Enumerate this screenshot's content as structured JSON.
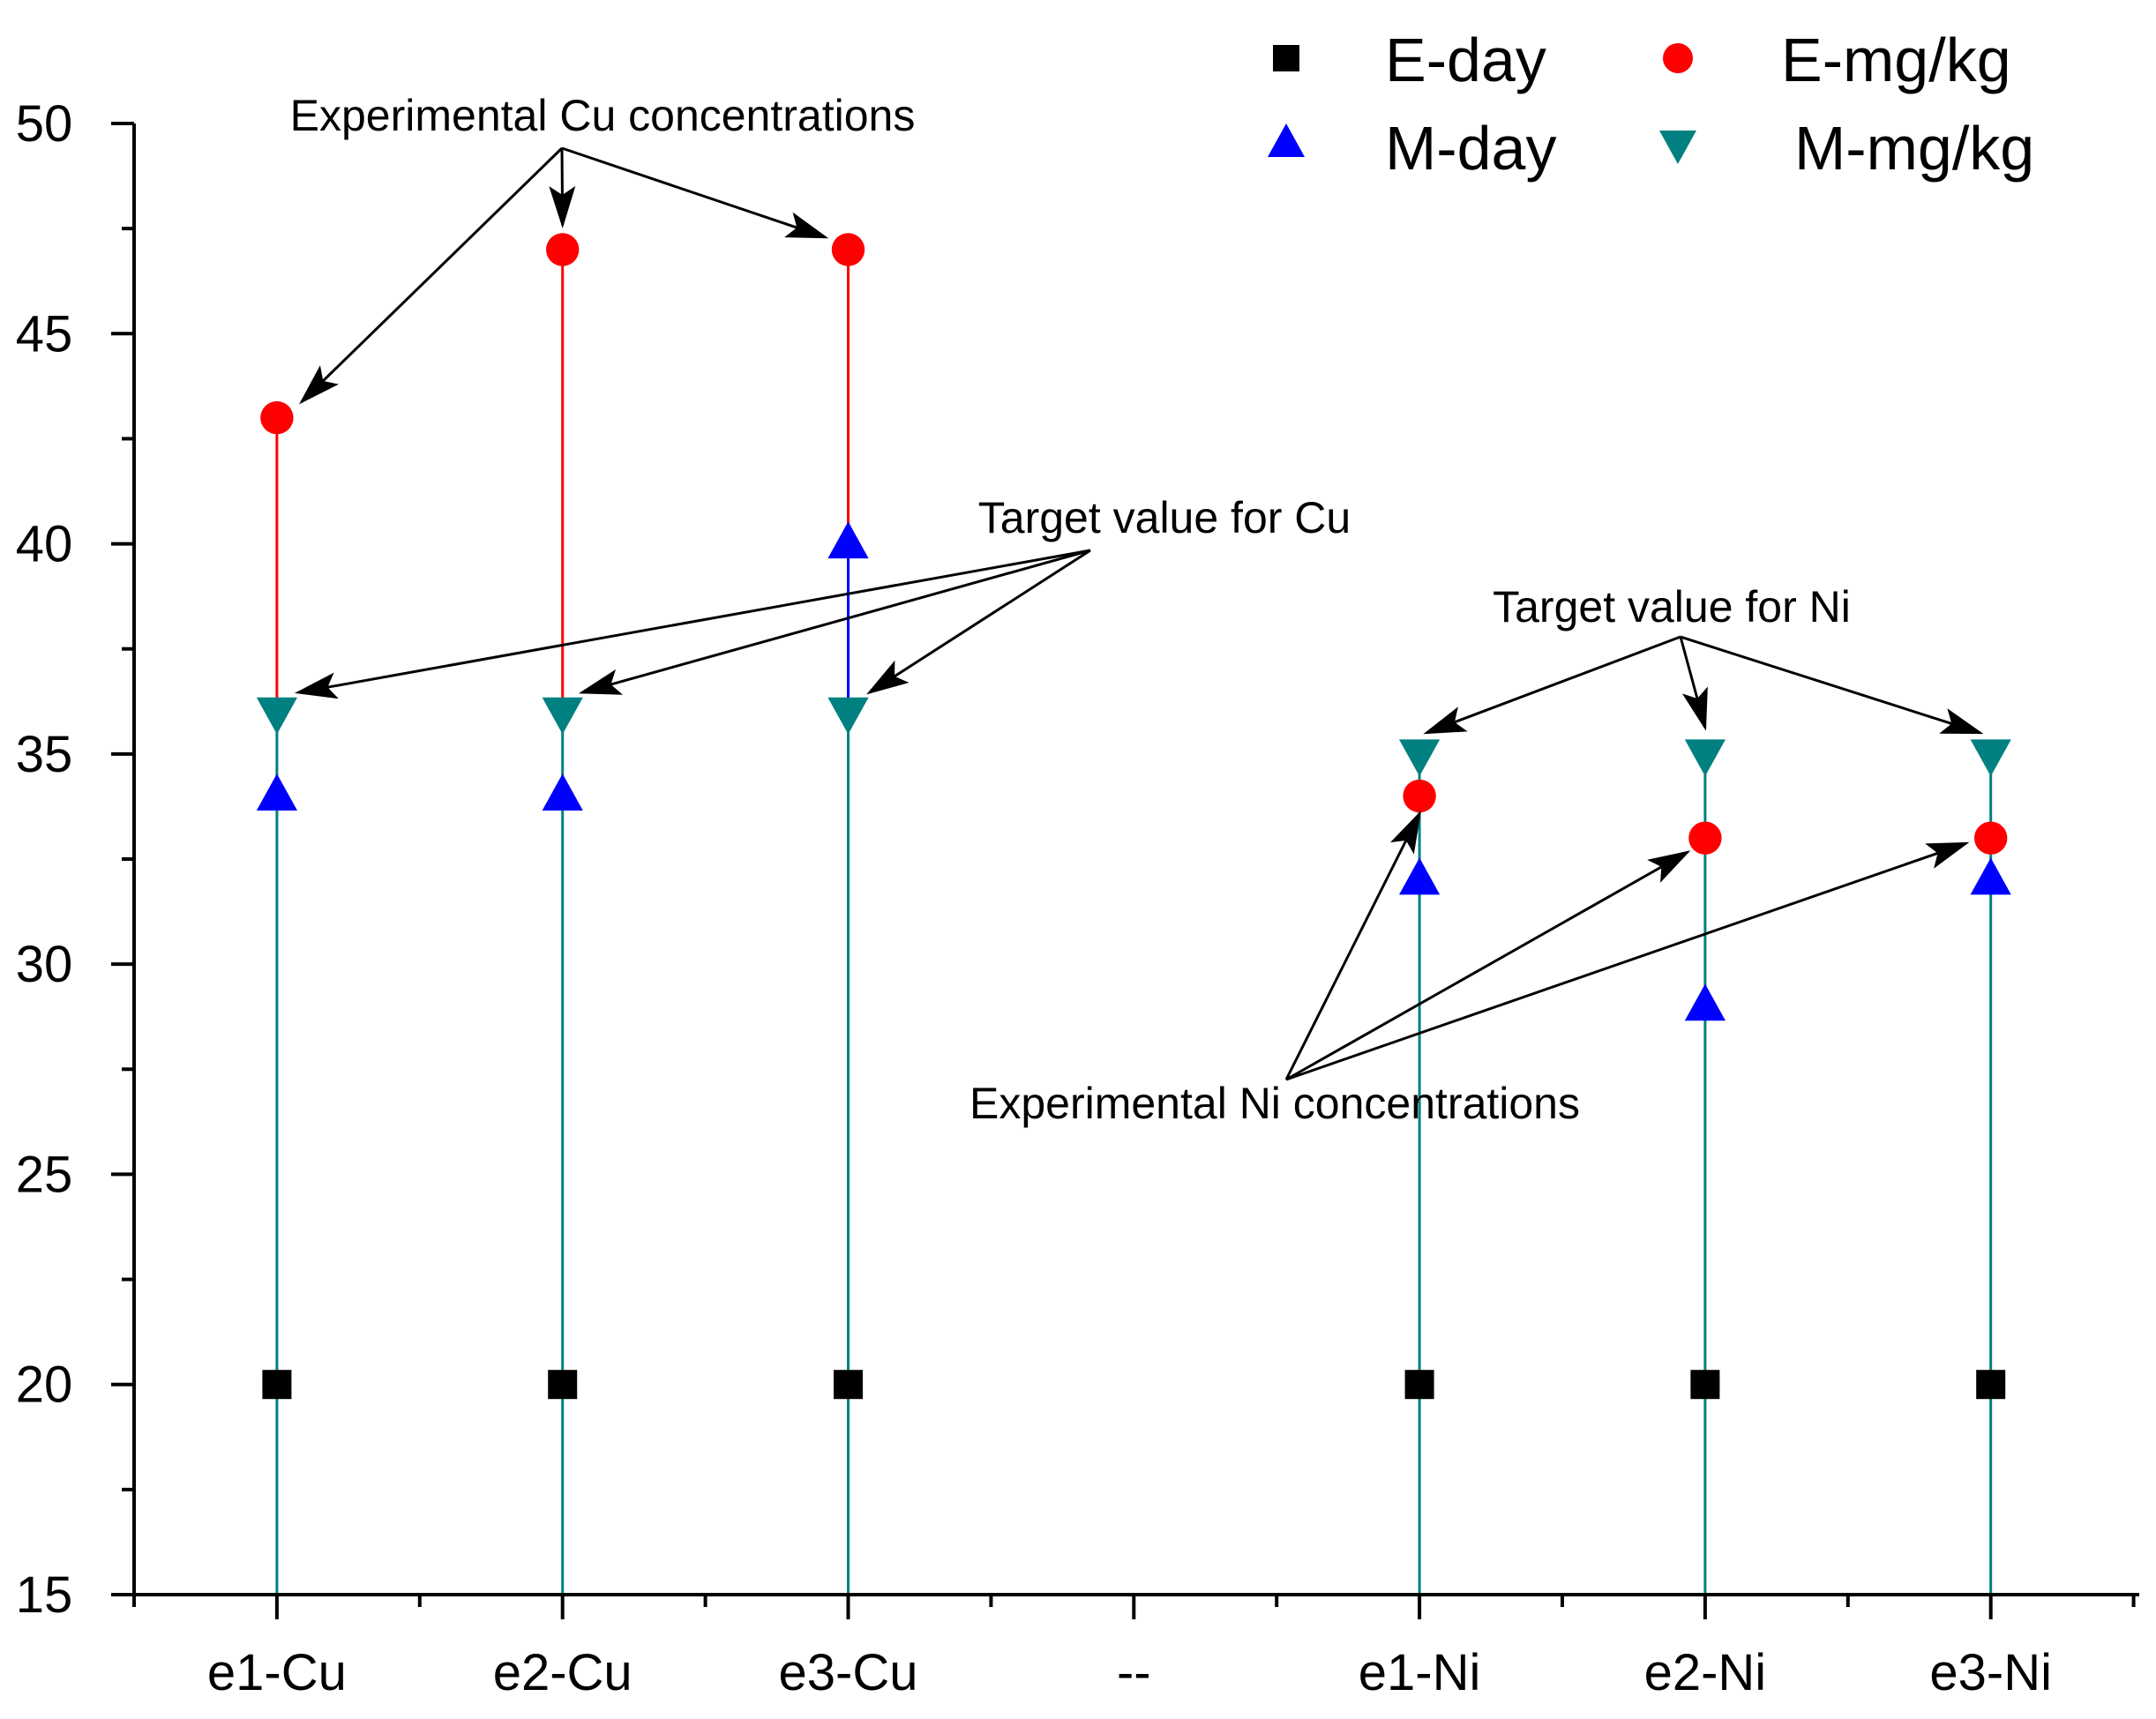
{
  "chart_data": {
    "type": "scatter",
    "title": "",
    "xlabel": "",
    "ylabel": "",
    "categories": [
      "e1-Cu",
      "e2-Cu",
      "e3-Cu",
      "--",
      "e1-Ni",
      "e2-Ni",
      "e3-Ni"
    ],
    "ylim": [
      15,
      50
    ],
    "yticks": [
      15,
      20,
      25,
      30,
      35,
      40,
      45,
      50
    ],
    "grid": false,
    "legend_position": "top-right",
    "series": [
      {
        "name": "E-day",
        "marker": "square",
        "color": "#000000",
        "values": [
          20,
          20,
          20,
          null,
          20,
          20,
          20
        ]
      },
      {
        "name": "E-mg/kg",
        "marker": "circle",
        "color": "#ff0000",
        "values": [
          43,
          47,
          47,
          null,
          34,
          33,
          33
        ]
      },
      {
        "name": "M-day",
        "marker": "triangle-up",
        "color": "#0000ff",
        "values": [
          34,
          34,
          40,
          null,
          32,
          29,
          32
        ]
      },
      {
        "name": "M-mg/kg",
        "marker": "triangle-down",
        "color": "#008080",
        "values": [
          36,
          36,
          36,
          null,
          35,
          35,
          35
        ]
      }
    ],
    "annotations": [
      {
        "text": "Experimental Cu concentrations",
        "targets": [
          "e1-Cu:E-mg/kg",
          "e2-Cu:E-mg/kg",
          "e3-Cu:E-mg/kg"
        ]
      },
      {
        "text": "Target value for Cu",
        "targets": [
          "e1-Cu:M-mg/kg",
          "e2-Cu:M-mg/kg",
          "e3-Cu:M-mg/kg"
        ]
      },
      {
        "text": "Target value for Ni",
        "targets": [
          "e1-Ni:M-mg/kg",
          "e2-Ni:M-mg/kg",
          "e3-Ni:M-mg/kg"
        ]
      },
      {
        "text": "Experimental Ni concentrations",
        "targets": [
          "e1-Ni:E-mg/kg",
          "e2-Ni:E-mg/kg",
          "e3-Ni:E-mg/kg"
        ]
      }
    ]
  },
  "colors": {
    "drop_line_red": "#ff0000",
    "drop_line_blue": "#0000ff",
    "drop_line_teal": "#008080",
    "axis": "#000000"
  }
}
